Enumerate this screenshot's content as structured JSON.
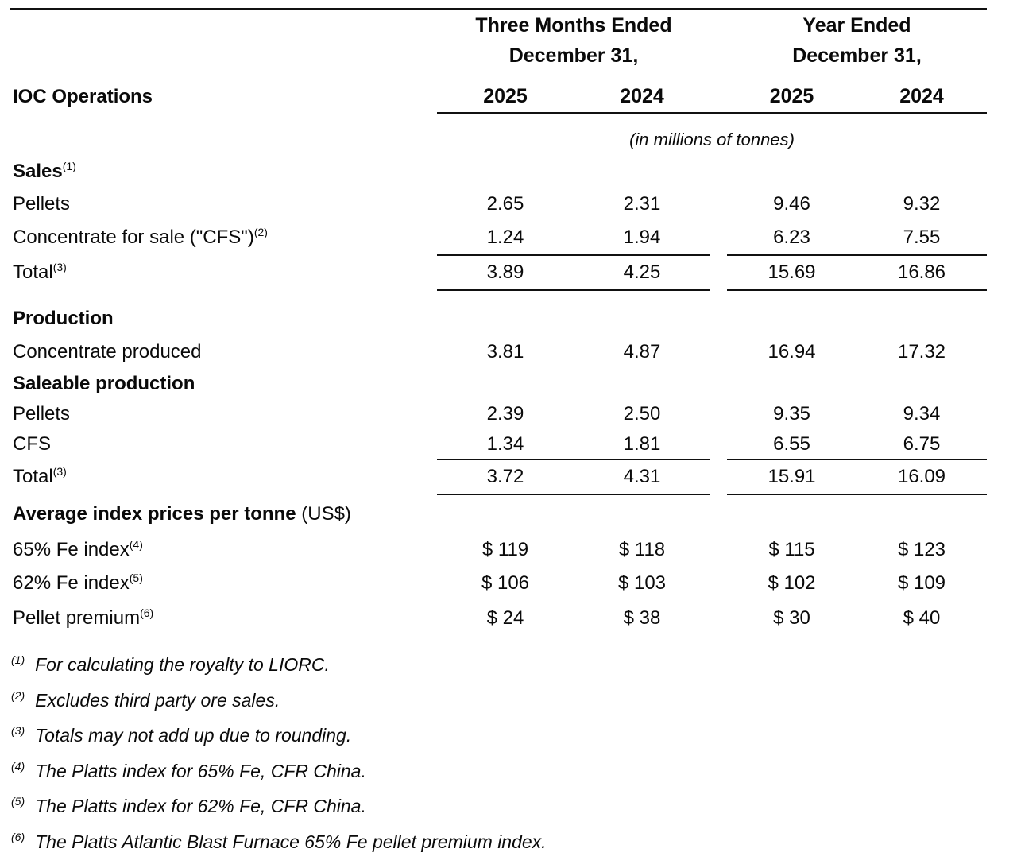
{
  "header": {
    "group1_line1": "Three Months Ended",
    "group1_line2": "December 31,",
    "group2_line1": "Year Ended",
    "group2_line2": "December 31,",
    "left_label": "IOC Operations",
    "years": [
      "2025",
      "2024",
      "2025",
      "2024"
    ],
    "units_note": "(in millions of tonnes)"
  },
  "rows": [
    {
      "label": "Sales",
      "sup": "(1)"
    },
    {
      "label": "Pellets",
      "values": [
        "2.65",
        "2.31",
        "9.46",
        "9.32"
      ]
    },
    {
      "label": "Concentrate for sale (\"CFS\")",
      "sup": "(2)",
      "values": [
        "1.24",
        "1.94",
        "6.23",
        "7.55"
      ]
    },
    {
      "label": "Total",
      "sup": "(3)",
      "values": [
        "3.89",
        "4.25",
        "15.69",
        "16.86"
      ]
    },
    {
      "label": "Production"
    },
    {
      "label": "Concentrate produced",
      "values": [
        "3.81",
        "4.87",
        "16.94",
        "17.32"
      ]
    },
    {
      "label": "Saleable production"
    },
    {
      "label": "Pellets",
      "values": [
        "2.39",
        "2.50",
        "9.35",
        "9.34"
      ]
    },
    {
      "label": "CFS",
      "values": [
        "1.34",
        "1.81",
        "6.55",
        "6.75"
      ]
    },
    {
      "label": "Total",
      "sup": "(3)",
      "values": [
        "3.72",
        "4.31",
        "15.91",
        "16.09"
      ]
    },
    {
      "label": "Average index prices per tonne",
      "label_suffix": " (US$)"
    },
    {
      "label": "65% Fe index",
      "sup": "(4)",
      "values": [
        "$ 119",
        "$ 118",
        "$ 115",
        "$ 123"
      ]
    },
    {
      "label": "62% Fe index",
      "sup": "(5)",
      "values": [
        "$ 106",
        "$ 103",
        "$ 102",
        "$ 109"
      ]
    },
    {
      "label": "Pellet premium",
      "sup": "(6)",
      "values": [
        "$ 24",
        "$ 38",
        "$ 30",
        "$ 40"
      ]
    }
  ],
  "footnotes": [
    {
      "marker": "(1)",
      "text": "For calculating the royalty to LIORC."
    },
    {
      "marker": "(2)",
      "text": "Excludes third party ore sales."
    },
    {
      "marker": "(3)",
      "text": "Totals may not add up due to rounding."
    },
    {
      "marker": "(4)",
      "text": "The Platts index for 65% Fe, CFR China."
    },
    {
      "marker": "(5)",
      "text": "The Platts index for 62% Fe, CFR China."
    },
    {
      "marker": "(6)",
      "text": "The Platts Atlantic Blast Furnace 65% Fe pellet premium index."
    }
  ]
}
